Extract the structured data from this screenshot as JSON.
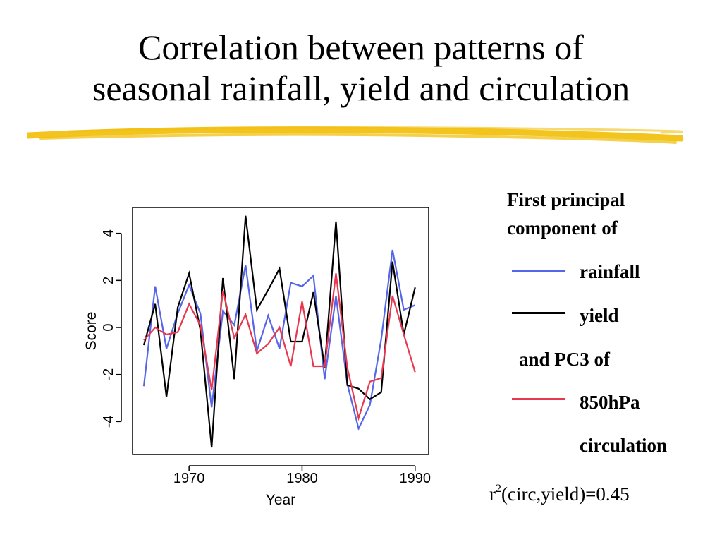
{
  "slide": {
    "title_line1": "Correlation between patterns of",
    "title_line2": "seasonal rainfall, yield and circulation"
  },
  "colors": {
    "rainfall": "#5566e8",
    "yield": "#000000",
    "circulation": "#e8384f",
    "underline": "#f2c012"
  },
  "legend": {
    "header_line1": "First principal",
    "header_line2": "component of",
    "rainfall": "rainfall",
    "yield": "yield",
    "pc3": "and PC3 of",
    "circ_line1": "850hPa",
    "circ_line2": "circulation"
  },
  "stat": {
    "r": "r",
    "sup": "2",
    "rest": "(circ,yield)=0.45"
  },
  "chart_data": {
    "type": "line",
    "xlabel": "Year",
    "ylabel": "Score",
    "xlim": [
      1965,
      1991.2
    ],
    "ylim": [
      -5.4,
      5.1
    ],
    "xticks": [
      1970,
      1980,
      1990
    ],
    "yticks": [
      -4,
      -2,
      0,
      2,
      4
    ],
    "grid": false,
    "x": [
      1966,
      1967,
      1968,
      1969,
      1970,
      1971,
      1972,
      1973,
      1974,
      1975,
      1976,
      1977,
      1978,
      1979,
      1980,
      1981,
      1982,
      1983,
      1984,
      1985,
      1986,
      1987,
      1988,
      1989,
      1990
    ],
    "series": [
      {
        "name": "rainfall",
        "color": "#5566e8",
        "values": [
          -2.5,
          1.75,
          -0.9,
          0.6,
          1.8,
          0.6,
          -3.4,
          0.7,
          0.1,
          2.65,
          -1.0,
          0.5,
          -0.9,
          1.9,
          1.75,
          2.2,
          -2.2,
          1.35,
          -2.4,
          -4.3,
          -3.3,
          -0.5,
          3.3,
          0.75,
          0.95
        ]
      },
      {
        "name": "yield",
        "color": "#000000",
        "values": [
          -0.75,
          1.0,
          -2.95,
          0.85,
          2.3,
          -0.1,
          -5.1,
          2.1,
          -2.2,
          4.75,
          0.75,
          1.6,
          2.5,
          -0.6,
          -0.6,
          1.5,
          -1.7,
          4.5,
          -2.45,
          -2.6,
          -3.05,
          -2.75,
          2.8,
          -0.3,
          1.7
        ]
      },
      {
        "name": "850hPa circulation",
        "color": "#e8384f",
        "values": [
          -0.55,
          0.0,
          -0.3,
          -0.2,
          1.0,
          0.1,
          -2.65,
          1.55,
          -0.45,
          0.55,
          -1.1,
          -0.7,
          0.0,
          -1.65,
          1.1,
          -1.65,
          -1.65,
          2.3,
          -1.7,
          -3.85,
          -2.3,
          -2.15,
          1.35,
          -0.3,
          -1.9
        ]
      }
    ]
  }
}
